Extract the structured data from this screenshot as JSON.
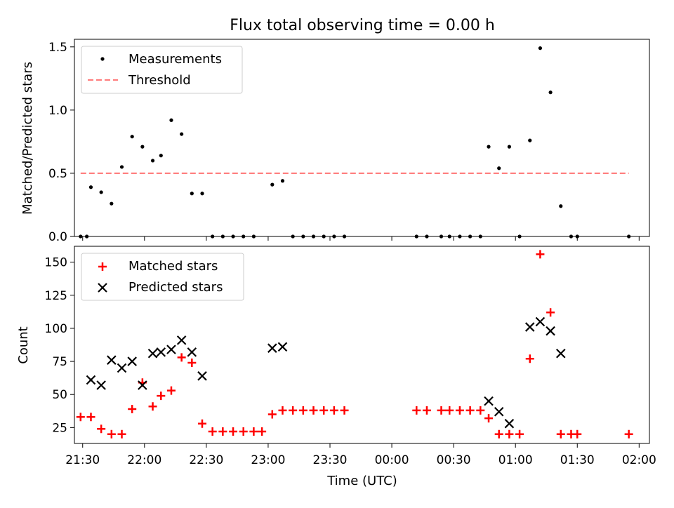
{
  "title": "Flux total observing time = 0.00 h",
  "chart_data": [
    {
      "type": "scatter",
      "ylabel": "Matched/Predicted stars",
      "xlim": [
        "21:26",
        "02:05"
      ],
      "ylim": [
        0,
        1.56
      ],
      "grid": false,
      "legend_position": "upper left",
      "x_ticks": [
        "21:30",
        "22:00",
        "22:30",
        "23:00",
        "23:30",
        "00:00",
        "00:30",
        "01:00",
        "01:30",
        "02:00"
      ],
      "x_tick_labels_shown": false,
      "y_ticks": [
        "0.0",
        "0.5",
        "1.0",
        "1.5"
      ],
      "series": [
        {
          "name": "Measurements",
          "marker": "dot",
          "color": "#000000",
          "points": [
            [
              "21:29",
              0.0
            ],
            [
              "21:32",
              0.0
            ],
            [
              "21:34",
              0.39
            ],
            [
              "21:39",
              0.35
            ],
            [
              "21:44",
              0.26
            ],
            [
              "21:49",
              0.55
            ],
            [
              "21:54",
              0.79
            ],
            [
              "21:59",
              0.71
            ],
            [
              "22:04",
              0.6
            ],
            [
              "22:08",
              0.64
            ],
            [
              "22:13",
              0.92
            ],
            [
              "22:18",
              0.81
            ],
            [
              "22:23",
              0.34
            ],
            [
              "22:28",
              0.34
            ],
            [
              "22:33",
              0.0
            ],
            [
              "22:38",
              0.0
            ],
            [
              "22:43",
              0.0
            ],
            [
              "22:48",
              0.0
            ],
            [
              "22:53",
              0.0
            ],
            [
              "23:02",
              0.41
            ],
            [
              "23:07",
              0.44
            ],
            [
              "23:12",
              0.0
            ],
            [
              "23:17",
              0.0
            ],
            [
              "23:22",
              0.0
            ],
            [
              "23:27",
              0.0
            ],
            [
              "23:32",
              0.0
            ],
            [
              "23:37",
              0.0
            ],
            [
              "00:12",
              0.0
            ],
            [
              "00:17",
              0.0
            ],
            [
              "00:24",
              0.0
            ],
            [
              "00:28",
              0.0
            ],
            [
              "00:33",
              0.0
            ],
            [
              "00:38",
              0.0
            ],
            [
              "00:43",
              0.0
            ],
            [
              "00:47",
              0.71
            ],
            [
              "00:52",
              0.54
            ],
            [
              "00:57",
              0.71
            ],
            [
              "01:02",
              0.0
            ],
            [
              "01:07",
              0.76
            ],
            [
              "01:12",
              1.49
            ],
            [
              "01:17",
              1.14
            ],
            [
              "01:22",
              0.24
            ],
            [
              "01:27",
              0.0
            ],
            [
              "01:30",
              0.0
            ],
            [
              "01:55",
              0.0
            ]
          ]
        },
        {
          "name": "Threshold",
          "marker": "dashed-line",
          "color": "#ff7f7f",
          "points": [
            [
              "21:29",
              0.5
            ],
            [
              "01:55",
              0.5
            ]
          ]
        }
      ]
    },
    {
      "type": "scatter",
      "xlabel": "Time (UTC)",
      "ylabel": "Count",
      "xlim": [
        "21:26",
        "02:05"
      ],
      "ylim": [
        13,
        162
      ],
      "grid": false,
      "legend_position": "upper left",
      "x_ticks": [
        "21:30",
        "22:00",
        "22:30",
        "23:00",
        "23:30",
        "00:00",
        "00:30",
        "01:00",
        "01:30",
        "02:00"
      ],
      "y_ticks": [
        "25",
        "50",
        "75",
        "100",
        "125",
        "150"
      ],
      "series": [
        {
          "name": "Matched stars",
          "marker": "plus",
          "color": "#ff0000",
          "points": [
            [
              "21:29",
              33
            ],
            [
              "21:34",
              33
            ],
            [
              "21:39",
              24
            ],
            [
              "21:44",
              20
            ],
            [
              "21:49",
              20
            ],
            [
              "21:54",
              39
            ],
            [
              "21:59",
              59
            ],
            [
              "22:04",
              41
            ],
            [
              "22:08",
              49
            ],
            [
              "22:13",
              53
            ],
            [
              "22:18",
              78
            ],
            [
              "22:23",
              74
            ],
            [
              "22:28",
              28
            ],
            [
              "22:33",
              22
            ],
            [
              "22:38",
              22
            ],
            [
              "22:43",
              22
            ],
            [
              "22:48",
              22
            ],
            [
              "22:53",
              22
            ],
            [
              "22:57",
              22
            ],
            [
              "23:02",
              35
            ],
            [
              "23:07",
              38
            ],
            [
              "23:12",
              38
            ],
            [
              "23:17",
              38
            ],
            [
              "23:22",
              38
            ],
            [
              "23:27",
              38
            ],
            [
              "23:32",
              38
            ],
            [
              "23:37",
              38
            ],
            [
              "00:12",
              38
            ],
            [
              "00:17",
              38
            ],
            [
              "00:24",
              38
            ],
            [
              "00:28",
              38
            ],
            [
              "00:33",
              38
            ],
            [
              "00:38",
              38
            ],
            [
              "00:43",
              38
            ],
            [
              "00:47",
              32
            ],
            [
              "00:52",
              20
            ],
            [
              "00:57",
              20
            ],
            [
              "01:02",
              20
            ],
            [
              "01:07",
              77
            ],
            [
              "01:12",
              156
            ],
            [
              "01:17",
              112
            ],
            [
              "01:22",
              20
            ],
            [
              "01:27",
              20
            ],
            [
              "01:30",
              20
            ],
            [
              "01:55",
              20
            ]
          ]
        },
        {
          "name": "Predicted stars",
          "marker": "x",
          "color": "#000000",
          "points": [
            [
              "21:34",
              61
            ],
            [
              "21:39",
              57
            ],
            [
              "21:44",
              76
            ],
            [
              "21:49",
              70
            ],
            [
              "21:54",
              75
            ],
            [
              "21:59",
              57
            ],
            [
              "22:04",
              81
            ],
            [
              "22:08",
              82
            ],
            [
              "22:13",
              84
            ],
            [
              "22:18",
              91
            ],
            [
              "22:23",
              82
            ],
            [
              "22:28",
              64
            ],
            [
              "23:02",
              85
            ],
            [
              "23:07",
              86
            ],
            [
              "00:47",
              45
            ],
            [
              "00:52",
              37
            ],
            [
              "00:57",
              28
            ],
            [
              "01:07",
              101
            ],
            [
              "01:12",
              105
            ],
            [
              "01:17",
              98
            ],
            [
              "01:22",
              81
            ]
          ]
        }
      ]
    }
  ]
}
